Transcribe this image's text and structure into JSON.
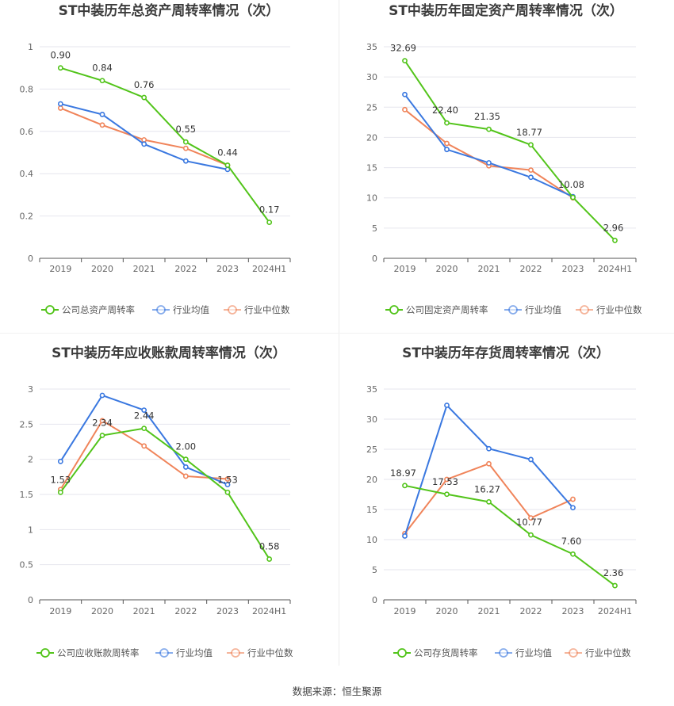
{
  "colors": {
    "company": "#52c41a",
    "industry_avg": "#3a78e0",
    "industry_median": "#f0845a"
  },
  "source": "数据来源：恒生聚源",
  "chart_data": [
    {
      "type": "line",
      "title": "ST中装历年总资产周转率情况（次）",
      "x": [
        "2019",
        "2020",
        "2021",
        "2022",
        "2023",
        "2024H1"
      ],
      "ylim": [
        0,
        1
      ],
      "yticks": [
        "0",
        "0.2",
        "0.4",
        "0.6",
        "0.8",
        "1"
      ],
      "ytick_values": [
        0,
        0.2,
        0.4,
        0.6,
        0.8,
        1
      ],
      "grid": true,
      "legend_position": "bottom",
      "series": [
        {
          "name": "公司总资产周转率",
          "role": "company",
          "values": [
            0.9,
            0.84,
            0.76,
            0.55,
            0.44,
            0.17
          ],
          "labels": [
            "0.90",
            "0.84",
            "0.76",
            "0.55",
            "0.44",
            "0.17"
          ]
        },
        {
          "name": "行业均值",
          "role": "industry_avg",
          "values": [
            0.73,
            0.68,
            0.54,
            0.46,
            0.42,
            null
          ]
        },
        {
          "name": "行业中位数",
          "role": "industry_median",
          "values": [
            0.71,
            0.63,
            0.56,
            0.52,
            0.44,
            null
          ]
        }
      ]
    },
    {
      "type": "line",
      "title": "ST中装历年固定资产周转率情况（次）",
      "x": [
        "2019",
        "2020",
        "2021",
        "2022",
        "2023",
        "2024H1"
      ],
      "ylim": [
        0,
        35
      ],
      "yticks": [
        "0",
        "5",
        "10",
        "15",
        "20",
        "25",
        "30",
        "35"
      ],
      "ytick_values": [
        0,
        5,
        10,
        15,
        20,
        25,
        30,
        35
      ],
      "grid": true,
      "legend_position": "bottom",
      "series": [
        {
          "name": "公司固定资产周转率",
          "role": "company",
          "values": [
            32.69,
            22.4,
            21.35,
            18.77,
            10.08,
            2.96
          ],
          "labels": [
            "32.69",
            "22.40",
            "21.35",
            "18.77",
            "10.08",
            "2.96"
          ]
        },
        {
          "name": "行业均值",
          "role": "industry_avg",
          "values": [
            27.1,
            18.0,
            15.8,
            13.4,
            10.2,
            null
          ]
        },
        {
          "name": "行业中位数",
          "role": "industry_median",
          "values": [
            24.6,
            19.0,
            15.3,
            14.6,
            10.0,
            null
          ]
        }
      ]
    },
    {
      "type": "line",
      "title": "ST中装历年应收账款周转率情况（次）",
      "x": [
        "2019",
        "2020",
        "2021",
        "2022",
        "2023",
        "2024H1"
      ],
      "ylim": [
        0,
        3
      ],
      "yticks": [
        "0",
        "0.5",
        "1",
        "1.5",
        "2",
        "2.5",
        "3"
      ],
      "ytick_values": [
        0,
        0.5,
        1,
        1.5,
        2,
        2.5,
        3
      ],
      "grid": true,
      "legend_position": "bottom",
      "series": [
        {
          "name": "公司应收账款周转率",
          "role": "company",
          "values": [
            1.53,
            2.34,
            2.44,
            2.0,
            1.53,
            0.58
          ],
          "labels": [
            "1.53",
            "2.34",
            "2.44",
            "2.00",
            "1.53",
            "0.58"
          ]
        },
        {
          "name": "行业均值",
          "role": "industry_avg",
          "values": [
            1.97,
            2.91,
            2.7,
            1.89,
            1.64,
            null
          ]
        },
        {
          "name": "行业中位数",
          "role": "industry_median",
          "values": [
            1.57,
            2.55,
            2.19,
            1.76,
            1.72,
            null
          ]
        }
      ]
    },
    {
      "type": "line",
      "title": "ST中装历年存货周转率情况（次）",
      "x": [
        "2019",
        "2020",
        "2021",
        "2022",
        "2023",
        "2024H1"
      ],
      "ylim": [
        0,
        35
      ],
      "yticks": [
        "0",
        "5",
        "10",
        "15",
        "20",
        "25",
        "30",
        "35"
      ],
      "ytick_values": [
        0,
        5,
        10,
        15,
        20,
        25,
        30,
        35
      ],
      "grid": true,
      "legend_position": "bottom",
      "series": [
        {
          "name": "公司存货周转率",
          "role": "company",
          "values": [
            18.97,
            17.53,
            16.27,
            10.77,
            7.6,
            2.36
          ],
          "labels": [
            "18.97",
            "17.53",
            "16.27",
            "10.77",
            "7.60",
            "2.36"
          ]
        },
        {
          "name": "行业均值",
          "role": "industry_avg",
          "values": [
            10.6,
            32.3,
            25.1,
            23.3,
            15.3,
            null
          ]
        },
        {
          "name": "行业中位数",
          "role": "industry_median",
          "values": [
            11.0,
            20.0,
            22.6,
            13.6,
            16.7,
            null
          ]
        }
      ]
    }
  ]
}
